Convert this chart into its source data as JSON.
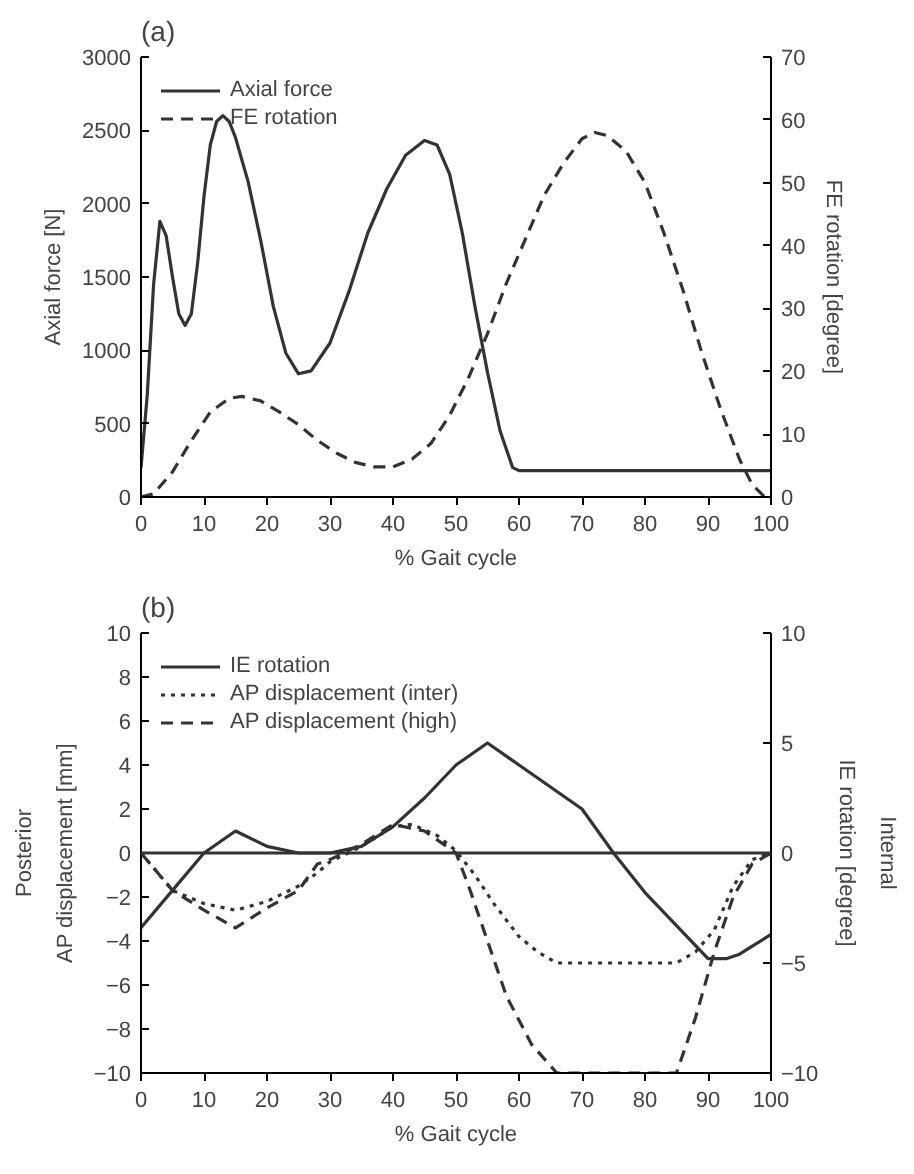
{
  "chart_data": [
    {
      "type": "line",
      "title": "(a)",
      "xlabel": "% Gait cycle",
      "ylabel": "Axial force [N]",
      "y2label": "FE rotation [degree]",
      "xlim": [
        0,
        100
      ],
      "xticks": [
        0,
        10,
        20,
        30,
        40,
        50,
        60,
        70,
        80,
        90,
        100
      ],
      "ylim": [
        0,
        3000
      ],
      "yticks": [
        0,
        500,
        1000,
        1500,
        2000,
        2500,
        3000
      ],
      "y2lim": [
        0,
        70
      ],
      "y2ticks": [
        0,
        10,
        20,
        30,
        40,
        50,
        60,
        70
      ],
      "legend": "top left",
      "grid": false,
      "series": [
        {
          "name": "Axial force",
          "color": "#333333",
          "line_style": "solid",
          "x": [
            0,
            1,
            2,
            3,
            4,
            5,
            6,
            7,
            8,
            9,
            10,
            11,
            12,
            13,
            14,
            15,
            17,
            19,
            21,
            23,
            25,
            27,
            30,
            33,
            36,
            39,
            42,
            45,
            47,
            49,
            51,
            53,
            55,
            57,
            59,
            60,
            100
          ],
          "values": [
            200,
            700,
            1450,
            1880,
            1780,
            1500,
            1250,
            1170,
            1250,
            1600,
            2050,
            2400,
            2560,
            2600,
            2560,
            2450,
            2150,
            1750,
            1300,
            980,
            840,
            860,
            1050,
            1400,
            1800,
            2100,
            2330,
            2430,
            2400,
            2200,
            1800,
            1300,
            850,
            450,
            200,
            180,
            180
          ]
        },
        {
          "name": "FE rotation",
          "color": "#333333",
          "line_style": "dashed",
          "axis": "y2",
          "x": [
            0,
            2,
            5,
            8,
            11,
            14,
            16,
            19,
            22,
            25,
            28,
            31,
            34,
            37,
            40,
            43,
            46,
            49,
            52,
            55,
            58,
            61,
            64,
            67,
            70,
            72,
            74,
            77,
            80,
            83,
            86,
            89,
            92,
            95,
            97,
            99
          ],
          "values": [
            0,
            0.5,
            4,
            9,
            13.5,
            15.7,
            16,
            15.3,
            13.5,
            11.5,
            9,
            7,
            5.5,
            4.8,
            4.8,
            6,
            8.5,
            13,
            19,
            26,
            34,
            41,
            48,
            53,
            57,
            58,
            57.5,
            55,
            50,
            42,
            33,
            23,
            14,
            6,
            2,
            0
          ]
        }
      ]
    },
    {
      "type": "line",
      "title": "(b)",
      "xlabel": "% Gait cycle",
      "ylabel": "AP displacement [mm]",
      "y2label": "IE rotation [degree]",
      "annotations": [
        "Posterior",
        "Internal"
      ],
      "xlim": [
        0,
        100
      ],
      "xticks": [
        0,
        10,
        20,
        30,
        40,
        50,
        60,
        70,
        80,
        90,
        100
      ],
      "ylim": [
        -10,
        10
      ],
      "yticks": [
        -10,
        -8,
        -6,
        -4,
        -2,
        0,
        2,
        4,
        6,
        8,
        10
      ],
      "y2lim": [
        -10,
        10
      ],
      "y2ticks": [
        -10,
        -5,
        0,
        5,
        10
      ],
      "legend": "top left",
      "grid": false,
      "ref_lines": [
        {
          "axis": "y",
          "value": 0,
          "color": "#333333"
        }
      ],
      "series": [
        {
          "name": "IE rotation",
          "color": "#333333",
          "line_style": "solid",
          "axis": "y2",
          "x": [
            0,
            5,
            10,
            15,
            20,
            25,
            30,
            35,
            40,
            45,
            50,
            55,
            60,
            65,
            70,
            75,
            80,
            85,
            90,
            93,
            95,
            100
          ],
          "values": [
            -3.4,
            -1.7,
            0,
            1,
            0.3,
            0,
            0,
            0.3,
            1.2,
            2.5,
            4,
            5,
            4,
            3,
            2,
            0,
            -1.8,
            -3.3,
            -4.8,
            -4.8,
            -4.6,
            -3.7
          ]
        },
        {
          "name": "AP displacement (inter)",
          "color": "#333333",
          "line_style": "dotted",
          "x": [
            0,
            5,
            10,
            15,
            20,
            25,
            28,
            30,
            35,
            40,
            43,
            47,
            50,
            53,
            56,
            60,
            63,
            66,
            70,
            80,
            85,
            88,
            91,
            94,
            97,
            100
          ],
          "values": [
            0,
            -1.7,
            -2.3,
            -2.6,
            -2.2,
            -1.5,
            -0.9,
            -0.4,
            0.3,
            1.2,
            1.3,
            0.8,
            0.1,
            -1,
            -2.3,
            -3.8,
            -4.5,
            -5,
            -5,
            -5,
            -5,
            -4.5,
            -3.5,
            -1.5,
            -0.3,
            0
          ]
        },
        {
          "name": "AP displacement (high)",
          "color": "#333333",
          "line_style": "dashed",
          "x": [
            0,
            5,
            10,
            15,
            20,
            25,
            28,
            30,
            35,
            40,
            45,
            50,
            52,
            55,
            58,
            62,
            66,
            70,
            80,
            85,
            88,
            91,
            94,
            97,
            100
          ],
          "values": [
            0,
            -1.7,
            -2.6,
            -3.4,
            -2.5,
            -1.7,
            -0.5,
            -0.3,
            0.4,
            1.3,
            1,
            0,
            -1.5,
            -4,
            -6.5,
            -8.7,
            -10,
            -10,
            -10,
            -10,
            -7.5,
            -4.5,
            -2,
            -0.5,
            0
          ]
        }
      ]
    }
  ]
}
